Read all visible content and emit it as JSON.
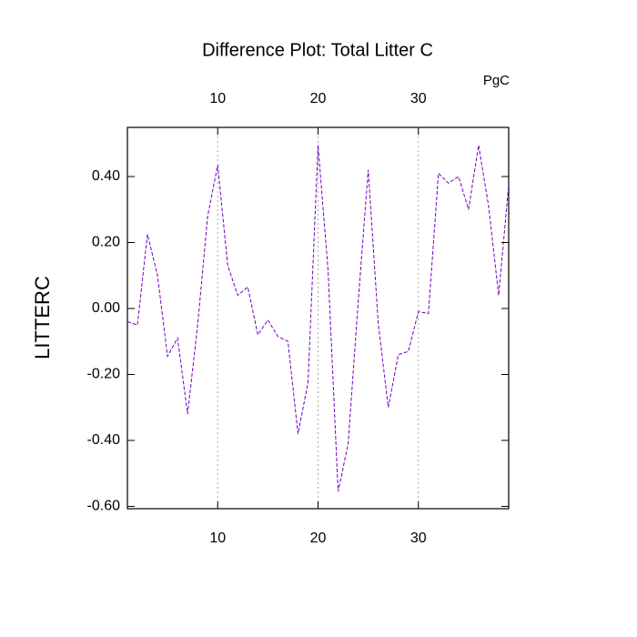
{
  "chart_data": {
    "type": "line",
    "title": "Difference Plot: Total Litter C",
    "units": "PgC",
    "y_label": "LITTERC",
    "x": [
      1,
      2,
      3,
      4,
      5,
      6,
      7,
      8,
      9,
      10,
      11,
      12,
      13,
      14,
      15,
      16,
      17,
      18,
      19,
      20,
      21,
      22,
      23,
      24,
      25,
      26,
      27,
      28,
      29,
      30,
      31,
      32,
      33,
      34,
      35,
      36,
      37,
      38,
      39
    ],
    "series": [
      {
        "color": "#7000c0",
        "values": [
          -0.04,
          -0.05,
          0.225,
          0.1,
          -0.145,
          -0.09,
          -0.32,
          -0.05,
          0.28,
          0.435,
          0.13,
          0.04,
          0.065,
          -0.08,
          -0.035,
          -0.085,
          -0.1,
          -0.38,
          -0.225,
          0.495,
          0.115,
          -0.555,
          -0.41,
          0.02,
          0.42,
          -0.045,
          -0.3,
          -0.14,
          -0.13,
          -0.01,
          -0.015,
          0.41,
          0.38,
          0.4,
          0.3,
          0.495,
          0.31,
          0.04,
          0.375
        ]
      }
    ],
    "xlim": [
      1,
      39
    ],
    "ylim": [
      -0.607,
      0.549
    ],
    "xticks": [
      10,
      20,
      30
    ],
    "yticks": [
      {
        "value": -0.6,
        "label": "-0.60"
      },
      {
        "value": -0.4,
        "label": "-0.40"
      },
      {
        "value": -0.2,
        "label": "-0.20"
      },
      {
        "value": 0,
        "label": "0.00"
      },
      {
        "value": 0.2,
        "label": "0.20"
      },
      {
        "value": 0.4,
        "label": "0.40"
      }
    ],
    "bottom_tick_color": "#ff0000",
    "top_tick_color": "#0000ff",
    "grid": true
  }
}
